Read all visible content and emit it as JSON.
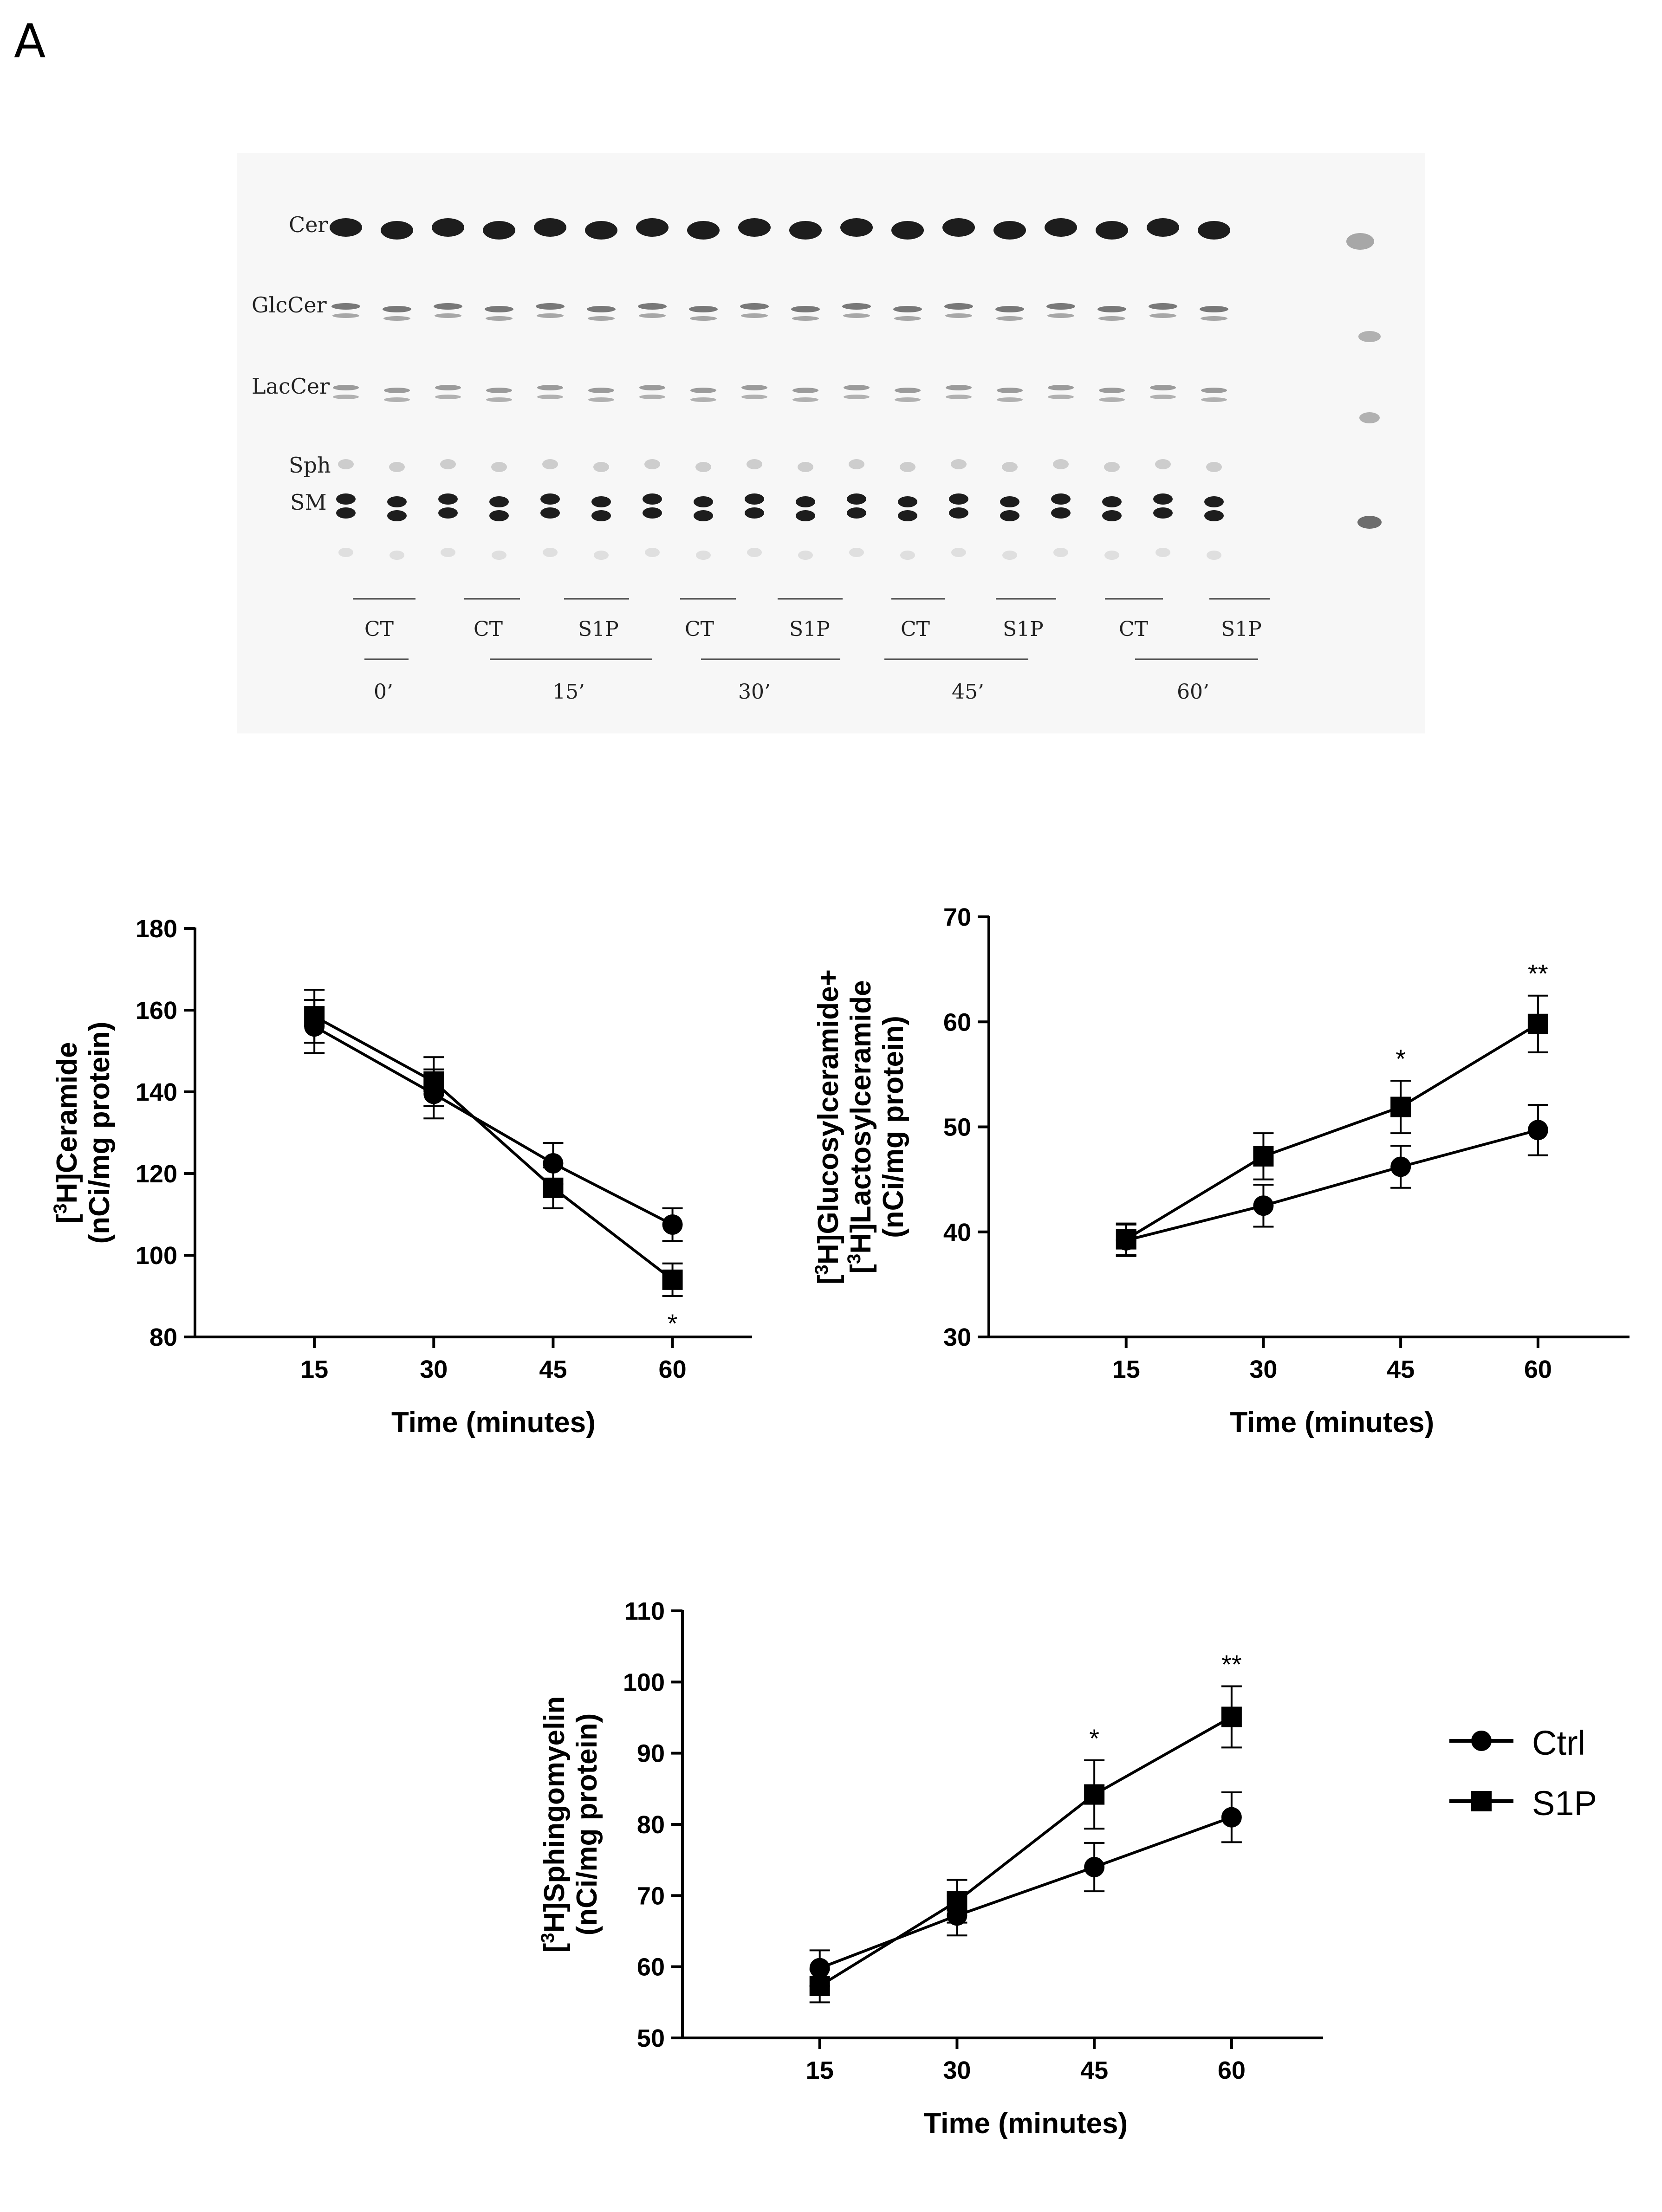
{
  "panel_label": "A",
  "tlc": {
    "lane_labels": [
      "Cer",
      "GlcCer",
      "LacCer",
      "Sph",
      "SM"
    ],
    "conditions": [
      "CT",
      "CT",
      "S1P",
      "CT",
      "S1P",
      "CT",
      "S1P",
      "CT",
      "S1P"
    ],
    "times": [
      "0’",
      "15’",
      "30’",
      "45’",
      "60’"
    ]
  },
  "legend": {
    "ctrl": "Ctrl",
    "s1p": "S1P"
  },
  "colors": {
    "line": "#000000"
  },
  "chart_data": [
    {
      "type": "line",
      "title": "",
      "xlabel": "Time (minutes)",
      "ylabel_lines": [
        "[3H]Ceramide",
        "(nCi/mg protein)"
      ],
      "x": [
        15,
        30,
        45,
        60
      ],
      "xlim": [
        0,
        70
      ],
      "ylim": [
        80,
        180
      ],
      "yticks": [
        80,
        100,
        120,
        140,
        160,
        180
      ],
      "series": [
        {
          "name": "Ctrl",
          "marker": "circle",
          "values": [
            156,
            139.5,
            122.5,
            107.5
          ],
          "err": [
            6.5,
            6,
            5,
            4
          ]
        },
        {
          "name": "S1P",
          "marker": "square",
          "values": [
            158.5,
            142.5,
            116.5,
            94
          ],
          "err": [
            6.5,
            6,
            5,
            4
          ]
        }
      ],
      "annotations": [
        {
          "x": 60,
          "text": "*",
          "position": "below"
        }
      ]
    },
    {
      "type": "line",
      "title": "",
      "xlabel": "Time (minutes)",
      "ylabel_lines": [
        "[3H]Glucosylceramide+",
        "[3H]Lactosylceramide",
        "(nCi/mg protein)"
      ],
      "x": [
        15,
        30,
        45,
        60
      ],
      "xlim": [
        0,
        70
      ],
      "ylim": [
        30,
        70
      ],
      "yticks": [
        30,
        40,
        50,
        60,
        70
      ],
      "series": [
        {
          "name": "Ctrl",
          "marker": "circle",
          "values": [
            39.2,
            42.5,
            46.2,
            49.7
          ],
          "err": [
            1.5,
            2,
            2,
            2.4
          ]
        },
        {
          "name": "S1P",
          "marker": "square",
          "values": [
            39.3,
            47.2,
            51.9,
            59.8
          ],
          "err": [
            1.5,
            2.2,
            2.5,
            2.7
          ]
        }
      ],
      "annotations": [
        {
          "x": 45,
          "text": "*",
          "position": "above"
        },
        {
          "x": 60,
          "text": "**",
          "position": "above"
        }
      ]
    },
    {
      "type": "line",
      "title": "",
      "xlabel": "Time (minutes)",
      "ylabel_lines": [
        "[3H]Sphingomyelin",
        "(nCi/mg protein)"
      ],
      "x": [
        15,
        30,
        45,
        60
      ],
      "xlim": [
        0,
        70
      ],
      "ylim": [
        50,
        110
      ],
      "yticks": [
        50,
        60,
        70,
        80,
        90,
        100,
        110
      ],
      "series": [
        {
          "name": "Ctrl",
          "marker": "circle",
          "values": [
            59.8,
            67.2,
            74,
            81
          ],
          "err": [
            2.5,
            2.8,
            3.4,
            3.5
          ]
        },
        {
          "name": "S1P",
          "marker": "square",
          "values": [
            57.3,
            69.2,
            84.2,
            95.1
          ],
          "err": [
            2.3,
            3,
            4.8,
            4.3
          ]
        }
      ],
      "annotations": [
        {
          "x": 45,
          "text": "*",
          "position": "above"
        },
        {
          "x": 60,
          "text": "**",
          "position": "above"
        }
      ]
    }
  ]
}
